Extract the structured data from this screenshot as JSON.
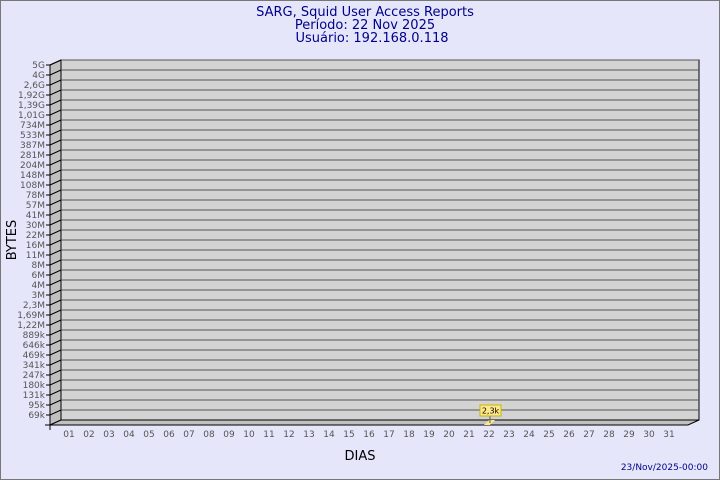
{
  "chart_data": {
    "type": "bar",
    "title": [
      "SARG, Squid User Access Reports",
      "Período: 22 Nov 2025",
      "Usuário: 192.168.0.118"
    ],
    "xlabel": "DIAS",
    "ylabel": "BYTES",
    "yscale": "log",
    "yticks": [
      "5G",
      "4G",
      "2,6G",
      "1,92G",
      "1,39G",
      "1,01G",
      "734M",
      "533M",
      "387M",
      "281M",
      "204M",
      "148M",
      "108M",
      "78M",
      "57M",
      "41M",
      "30M",
      "22M",
      "16M",
      "11M",
      "8M",
      "6M",
      "4M",
      "3M",
      "2,3M",
      "1,69M",
      "1,22M",
      "889k",
      "646k",
      "469k",
      "341k",
      "247k",
      "180k",
      "131k",
      "95k",
      "69k"
    ],
    "categories": [
      "01",
      "02",
      "03",
      "04",
      "05",
      "06",
      "07",
      "08",
      "09",
      "10",
      "11",
      "12",
      "13",
      "14",
      "15",
      "16",
      "17",
      "18",
      "19",
      "20",
      "21",
      "22",
      "23",
      "24",
      "25",
      "26",
      "27",
      "28",
      "29",
      "30",
      "31"
    ],
    "values": [
      null,
      null,
      null,
      null,
      null,
      null,
      null,
      null,
      null,
      null,
      null,
      null,
      null,
      null,
      null,
      null,
      null,
      null,
      null,
      null,
      null,
      2300,
      null,
      null,
      null,
      null,
      null,
      null,
      null,
      null,
      null
    ],
    "data_labels": {
      "22": "2,3k"
    },
    "grid": true,
    "colors": {
      "background": "#e6e6fa",
      "wall": "#d3d3d3",
      "side": "#c0c0c0",
      "bar": "#ffe88c",
      "title": "#00008b",
      "tick": "#555555"
    }
  },
  "footer": {
    "timestamp": "23/Nov/2025-00:00"
  }
}
